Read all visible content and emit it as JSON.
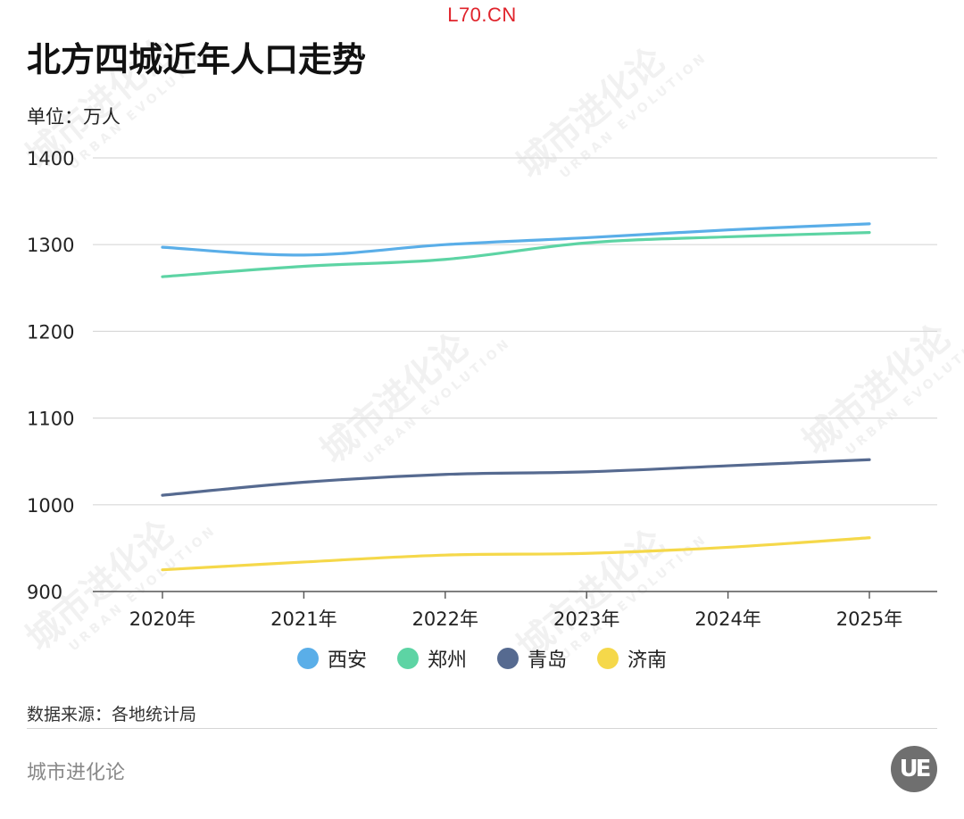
{
  "site_tag": "L70.CN",
  "header": {
    "title": "北方四城近年人口走势",
    "unit": "单位：万人"
  },
  "footer": {
    "source": "数据来源：各地统计局",
    "brand": "城市进化论",
    "logo_text": "UE"
  },
  "watermark": {
    "cn": "城市进化论",
    "en": "URBAN EVOLUTION"
  },
  "chart_data": {
    "type": "line",
    "title": "北方四城近年人口走势",
    "ylabel": "单位：万人",
    "categories": [
      "2020年",
      "2021年",
      "2022年",
      "2023年",
      "2024年",
      "2025年"
    ],
    "ylim": [
      900,
      1400
    ],
    "yticks": [
      900,
      1000,
      1100,
      1200,
      1300,
      1400
    ],
    "grid": true,
    "legend_position": "bottom",
    "series": [
      {
        "name": "西安",
        "color": "#5aaee8",
        "values": [
          1297,
          1288,
          1300,
          1308,
          1317,
          1324
        ]
      },
      {
        "name": "郑州",
        "color": "#5dd4a4",
        "values": [
          1263,
          1275,
          1283,
          1302,
          1309,
          1314
        ]
      },
      {
        "name": "青岛",
        "color": "#566a90",
        "values": [
          1011,
          1026,
          1035,
          1038,
          1045,
          1052
        ]
      },
      {
        "name": "济南",
        "color": "#f5d84a",
        "values": [
          925,
          934,
          942,
          944,
          951,
          962
        ]
      }
    ]
  }
}
